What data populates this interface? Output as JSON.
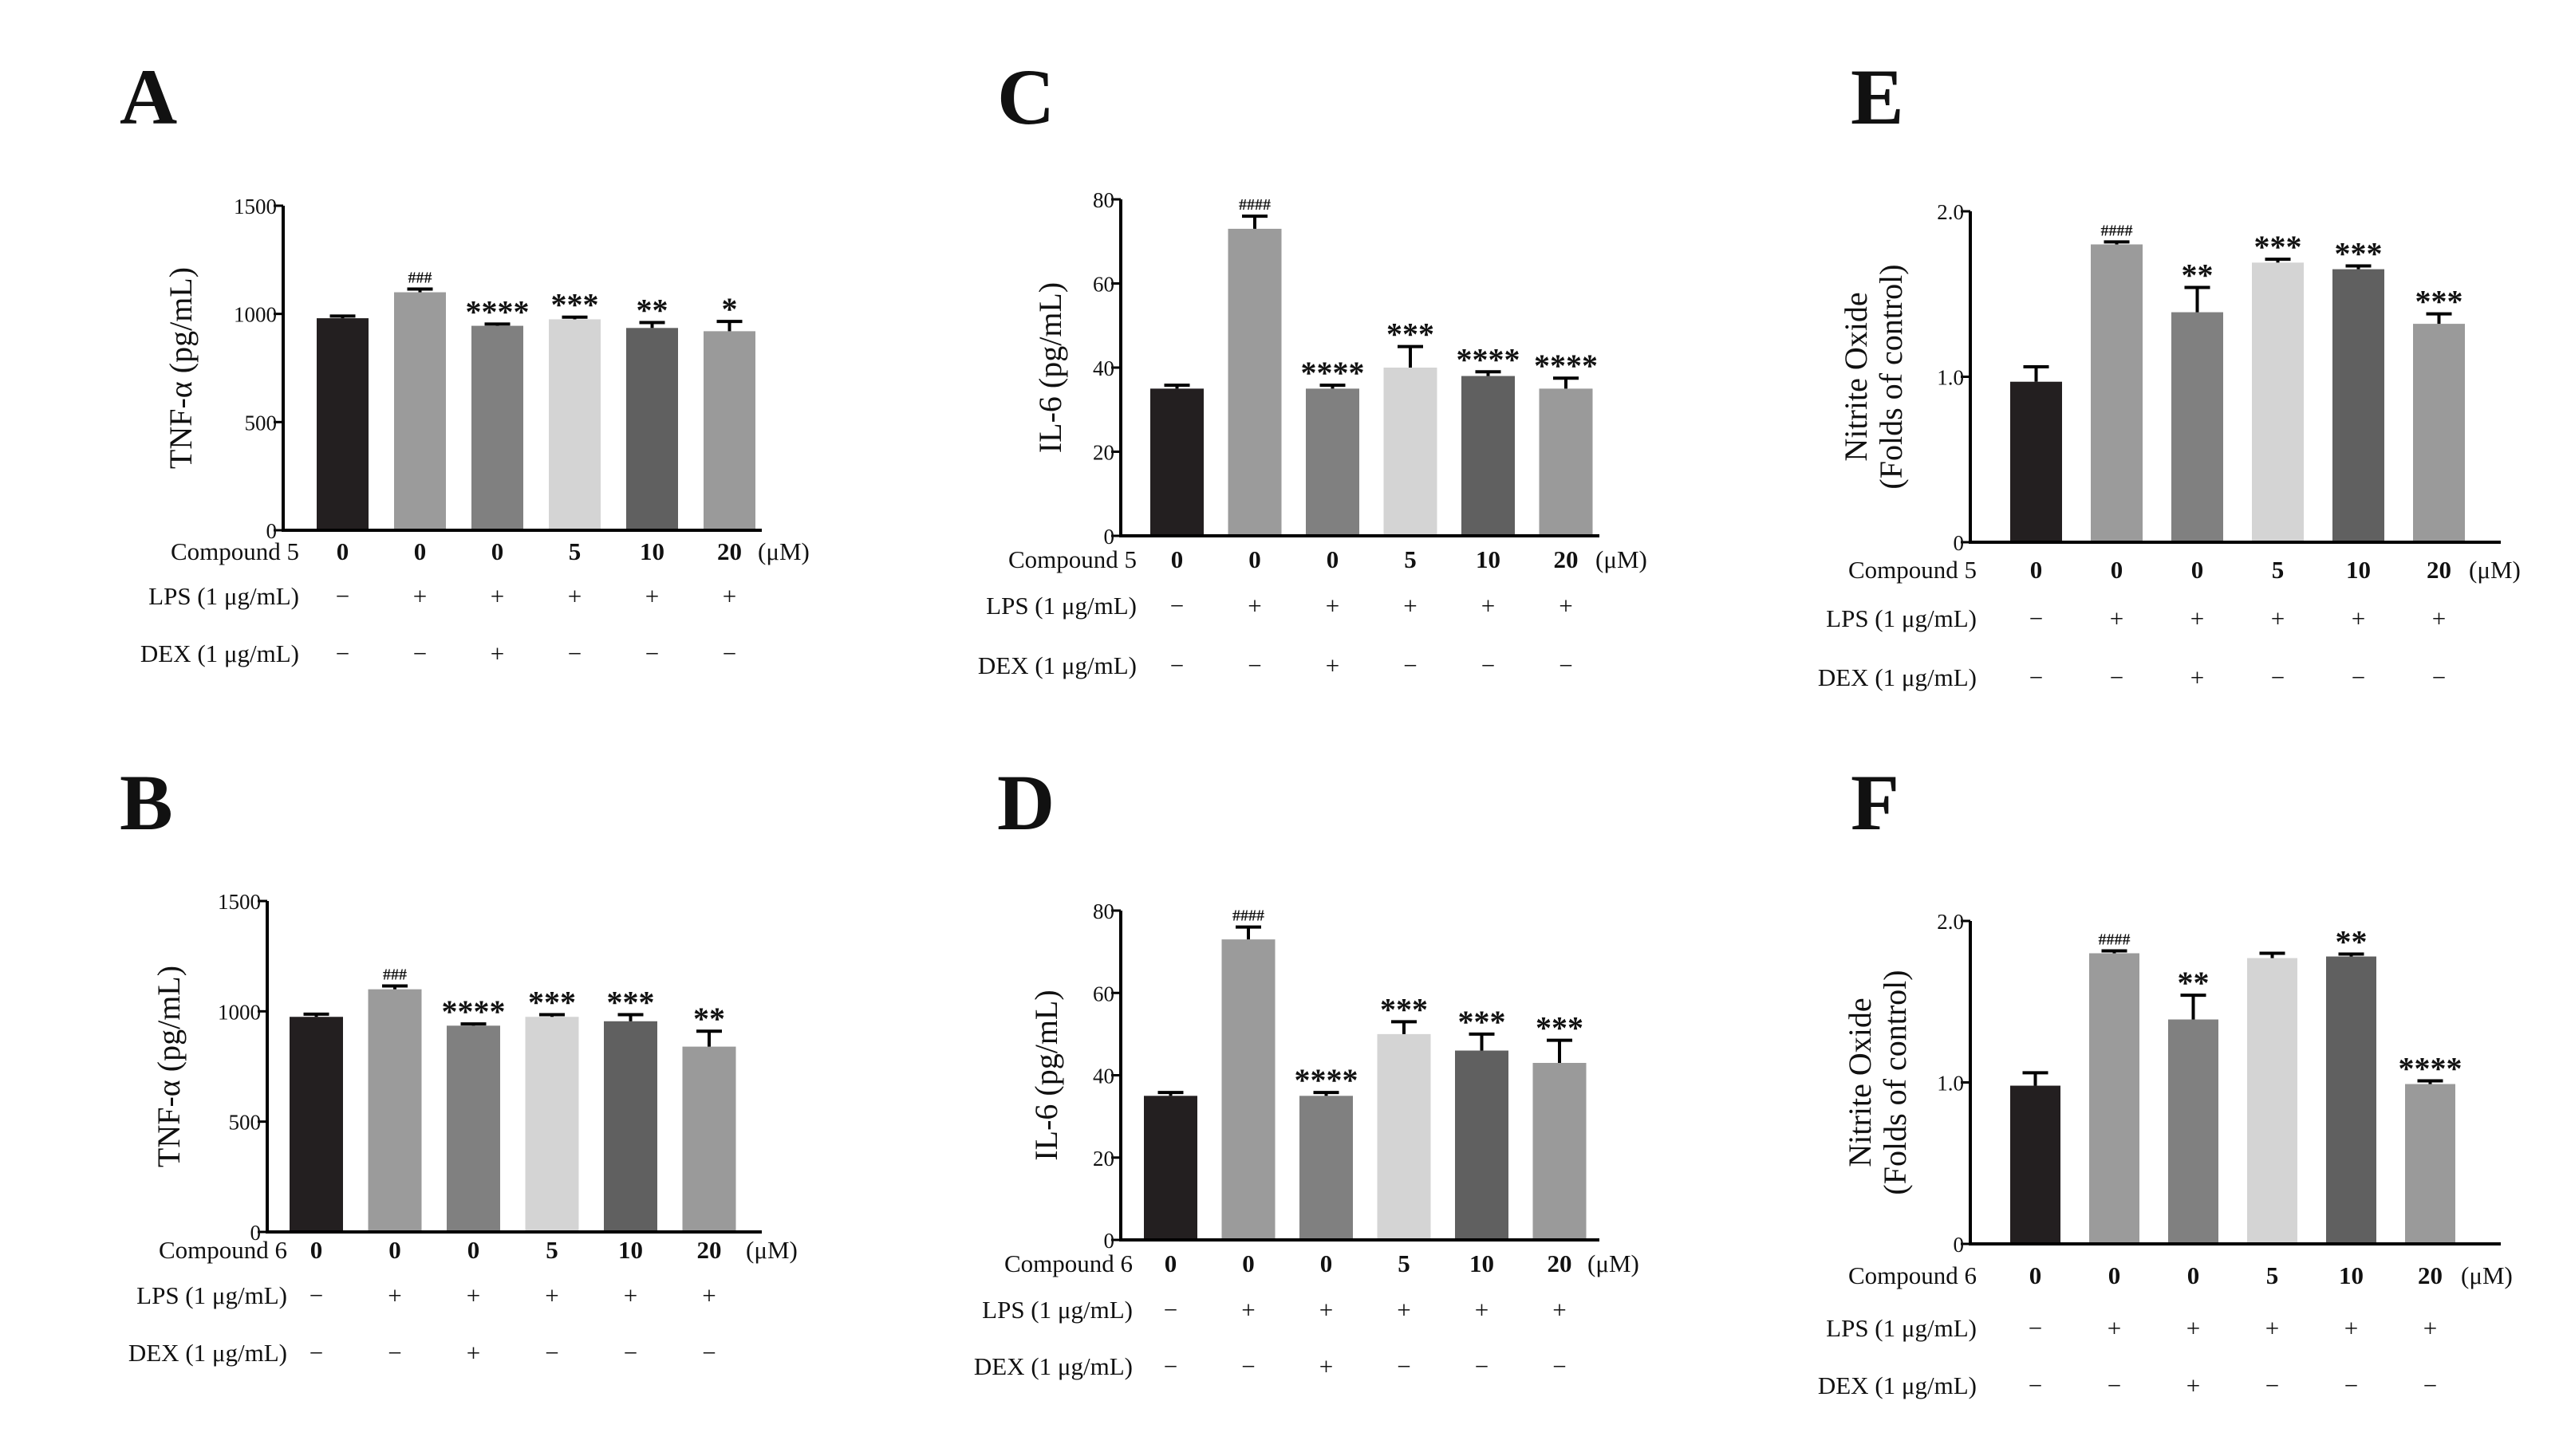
{
  "colors": [
    "#231f20",
    "#9b9b9b",
    "#808080",
    "#d4d4d4",
    "#606060",
    "#9a9a9a"
  ],
  "chart_data": [
    {
      "panel": "A",
      "type": "bar",
      "ylabel": "TNF-α (pg/mL)",
      "ylim": [
        0,
        1500
      ],
      "yticks": [
        "0",
        "500",
        "1000",
        "1500"
      ],
      "ytick_values": [
        0,
        500,
        1000,
        1500
      ],
      "values": [
        980,
        1100,
        945,
        975,
        935,
        920
      ],
      "errors": [
        10,
        15,
        8,
        10,
        25,
        45
      ],
      "significance": [
        "",
        "###",
        "****",
        "***",
        "**",
        "*"
      ],
      "rows": [
        {
          "label": "Compound 5",
          "cells": [
            "0",
            "0",
            "0",
            "5",
            "10",
            "20"
          ],
          "unit": "(μM)"
        },
        {
          "label": "LPS (1 μg/mL)",
          "cells": [
            "−",
            "+",
            "+",
            "+",
            "+",
            "+"
          ]
        },
        {
          "label": "DEX (1 μg/mL)",
          "cells": [
            "−",
            "−",
            "+",
            "−",
            "−",
            "−"
          ]
        }
      ]
    },
    {
      "panel": "B",
      "type": "bar",
      "ylabel": "TNF-α (pg/mL)",
      "ylim": [
        0,
        1500
      ],
      "yticks": [
        "0",
        "500",
        "1000",
        "1500"
      ],
      "ytick_values": [
        0,
        500,
        1000,
        1500
      ],
      "values": [
        975,
        1100,
        935,
        975,
        955,
        840
      ],
      "errors": [
        12,
        15,
        8,
        10,
        30,
        70
      ],
      "significance": [
        "",
        "###",
        "****",
        "***",
        "***",
        "**"
      ],
      "rows": [
        {
          "label": "Compound 6",
          "cells": [
            "0",
            "0",
            "0",
            "5",
            "10",
            "20"
          ],
          "unit": "(μM)"
        },
        {
          "label": "LPS (1 μg/mL)",
          "cells": [
            "−",
            "+",
            "+",
            "+",
            "+",
            "+"
          ]
        },
        {
          "label": "DEX (1 μg/mL)",
          "cells": [
            "−",
            "−",
            "+",
            "−",
            "−",
            "−"
          ]
        }
      ]
    },
    {
      "panel": "C",
      "type": "bar",
      "ylabel": "IL-6 (pg/mL)",
      "ylim": [
        0,
        80
      ],
      "yticks": [
        "0",
        "20",
        "40",
        "60",
        "80"
      ],
      "ytick_values": [
        0,
        20,
        40,
        60,
        80
      ],
      "values": [
        35,
        73,
        35,
        40,
        38,
        35
      ],
      "errors": [
        0.8,
        3,
        0.8,
        5,
        1,
        2.5
      ],
      "significance": [
        "",
        "####",
        "****",
        "***",
        "****",
        "****"
      ],
      "rows": [
        {
          "label": "Compound 5",
          "cells": [
            "0",
            "0",
            "0",
            "5",
            "10",
            "20"
          ],
          "unit": "(μM)"
        },
        {
          "label": "LPS (1 μg/mL)",
          "cells": [
            "−",
            "+",
            "+",
            "+",
            "+",
            "+"
          ]
        },
        {
          "label": "DEX (1 μg/mL)",
          "cells": [
            "−",
            "−",
            "+",
            "−",
            "−",
            "−"
          ]
        }
      ]
    },
    {
      "panel": "D",
      "type": "bar",
      "ylabel": "IL-6 (pg/mL)",
      "ylim": [
        0,
        80
      ],
      "yticks": [
        "0",
        "20",
        "40",
        "60",
        "80"
      ],
      "ytick_values": [
        0,
        20,
        40,
        60,
        80
      ],
      "values": [
        35,
        73,
        35,
        50,
        46,
        43
      ],
      "errors": [
        0.8,
        3,
        0.8,
        3,
        4,
        5.5
      ],
      "significance": [
        "",
        "####",
        "****",
        "***",
        "***",
        "***"
      ],
      "rows": [
        {
          "label": "Compound 6",
          "cells": [
            "0",
            "0",
            "0",
            "5",
            "10",
            "20"
          ],
          "unit": "(μM)"
        },
        {
          "label": "LPS (1 μg/mL)",
          "cells": [
            "−",
            "+",
            "+",
            "+",
            "+",
            "+"
          ]
        },
        {
          "label": "DEX (1 μg/mL)",
          "cells": [
            "−",
            "−",
            "+",
            "−",
            "−",
            "−"
          ]
        }
      ]
    },
    {
      "panel": "E",
      "type": "bar",
      "ylabel": [
        "Nitrite Oxide",
        "(Folds of control)"
      ],
      "ylim": [
        0,
        2.0
      ],
      "yticks": [
        "0",
        "1.0",
        "2.0"
      ],
      "ytick_values": [
        0,
        1.0,
        2.0
      ],
      "values": [
        0.97,
        1.8,
        1.39,
        1.69,
        1.65,
        1.32
      ],
      "errors": [
        0.09,
        0.015,
        0.15,
        0.02,
        0.02,
        0.06
      ],
      "significance": [
        "",
        "####",
        "**",
        "***",
        "***",
        "***"
      ],
      "rows": [
        {
          "label": "Compound 5",
          "cells": [
            "0",
            "0",
            "0",
            "5",
            "10",
            "20"
          ],
          "unit": "(μM)"
        },
        {
          "label": "LPS (1 μg/mL)",
          "cells": [
            "−",
            "+",
            "+",
            "+",
            "+",
            "+"
          ]
        },
        {
          "label": "DEX (1 μg/mL)",
          "cells": [
            "−",
            "−",
            "+",
            "−",
            "−",
            "−"
          ]
        }
      ]
    },
    {
      "panel": "F",
      "type": "bar",
      "ylabel": [
        "Nitrite Oxide",
        "(Folds of control)"
      ],
      "ylim": [
        0,
        2.0
      ],
      "yticks": [
        "0",
        "1.0",
        "2.0"
      ],
      "ytick_values": [
        0,
        1.0,
        2.0
      ],
      "values": [
        0.98,
        1.8,
        1.39,
        1.77,
        1.78,
        0.99
      ],
      "errors": [
        0.08,
        0.015,
        0.15,
        0.03,
        0.015,
        0.02
      ],
      "significance": [
        "",
        "####",
        "**",
        "",
        "**",
        "****"
      ],
      "rows": [
        {
          "label": "Compound 6",
          "cells": [
            "0",
            "0",
            "0",
            "5",
            "10",
            "20"
          ],
          "unit": "(μM)"
        },
        {
          "label": "LPS (1 μg/mL)",
          "cells": [
            "−",
            "+",
            "+",
            "+",
            "+",
            "+"
          ]
        },
        {
          "label": "DEX (1 μg/mL)",
          "cells": [
            "−",
            "−",
            "+",
            "−",
            "−",
            "−"
          ]
        }
      ]
    }
  ]
}
